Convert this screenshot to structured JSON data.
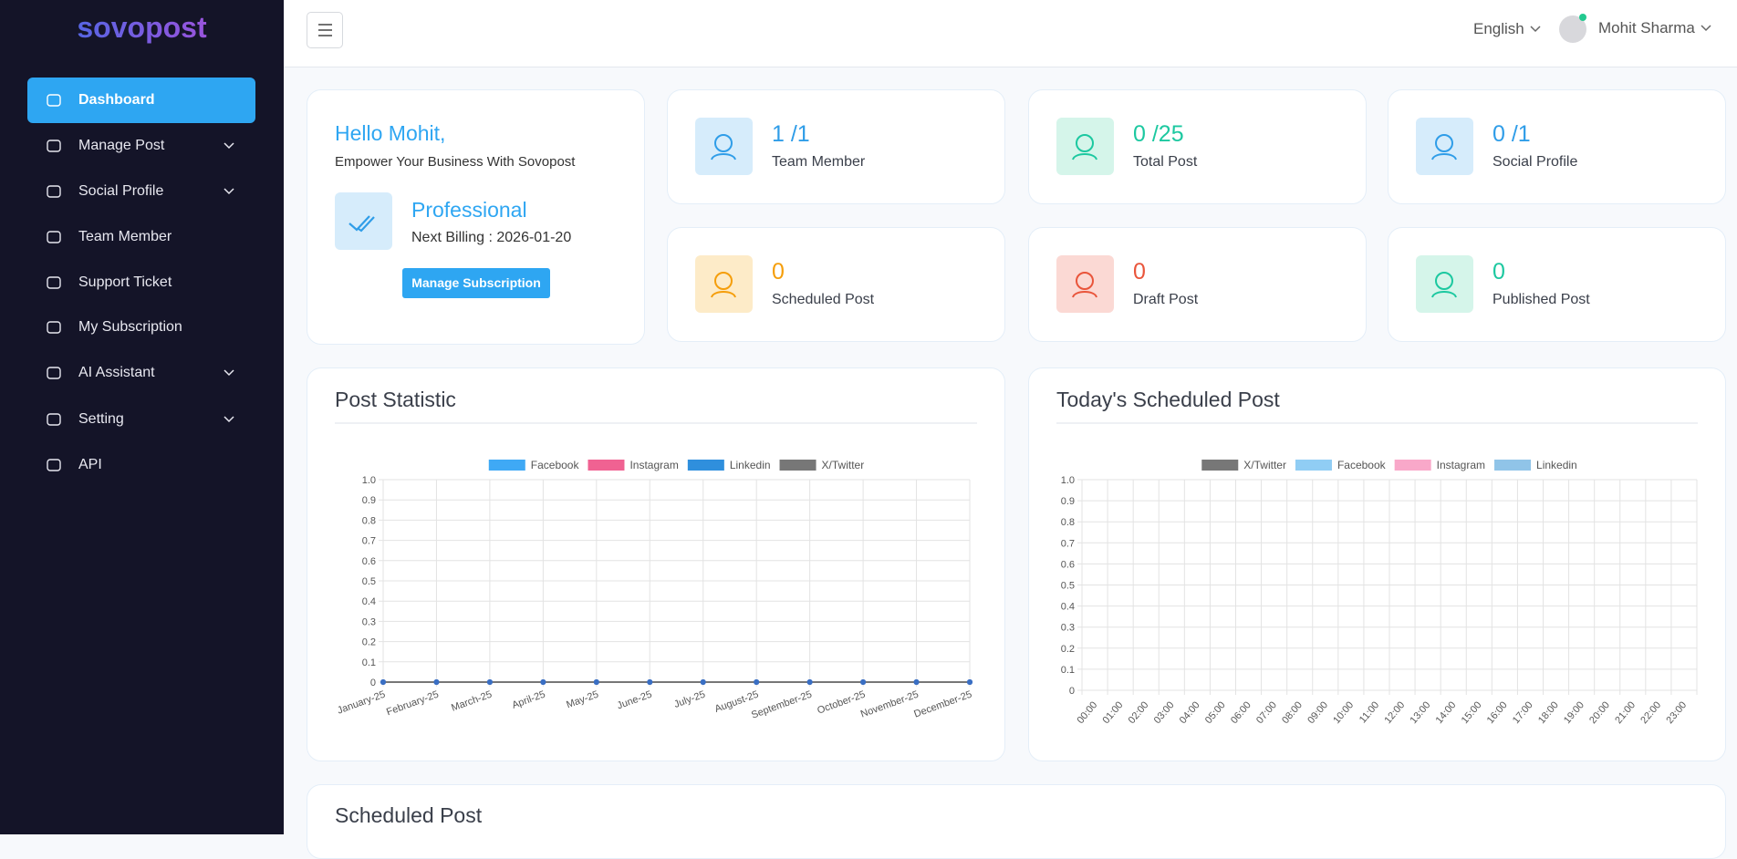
{
  "sidebar": {
    "logo": "sovopost",
    "menu": [
      "Dashboard",
      "Manage Post",
      "Social Profile",
      "Team Member",
      "Support Ticket",
      "My Subscription",
      "AI Assistant",
      "Setting",
      "API"
    ]
  },
  "header": {
    "language": "English",
    "user": "Mohit Sharma"
  },
  "welcome": {
    "greeting": "Hello Mohit,",
    "tagline": "Empower Your Business With Sovopost",
    "plan": "Professional",
    "billing": "Next Billing : 2026-01-20",
    "button": "Manage Subscription"
  },
  "stats": [
    {
      "value": "1 /1",
      "label": "Team Member"
    },
    {
      "value": "0 /25",
      "label": "Total Post"
    },
    {
      "value": "0 /1",
      "label": "Social Profile"
    },
    {
      "value": 0,
      "label": "Scheduled Post"
    },
    {
      "value": 0,
      "label": "Draft Post"
    },
    {
      "value": 0,
      "label": "Published Post"
    }
  ],
  "chart_data": [
    {
      "type": "line",
      "title": "Post Statistic",
      "categories": [
        "January-25",
        "February-25",
        "March-25",
        "April-25",
        "May-25",
        "June-25",
        "July-25",
        "August-25",
        "September-25",
        "October-25",
        "November-25",
        "December-25"
      ],
      "series": [
        {
          "name": "Facebook",
          "color": "#3fa9f5",
          "values": [
            0,
            0,
            0,
            0,
            0,
            0,
            0,
            0,
            0,
            0,
            0,
            0
          ]
        },
        {
          "name": "Instagram",
          "color": "#f06292",
          "values": [
            0,
            0,
            0,
            0,
            0,
            0,
            0,
            0,
            0,
            0,
            0,
            0
          ]
        },
        {
          "name": "Linkedin",
          "color": "#2f8fdd",
          "values": [
            0,
            0,
            0,
            0,
            0,
            0,
            0,
            0,
            0,
            0,
            0,
            0
          ]
        },
        {
          "name": "X/Twitter",
          "color": "#777777",
          "values": [
            0,
            0,
            0,
            0,
            0,
            0,
            0,
            0,
            0,
            0,
            0,
            0
          ]
        }
      ],
      "ylim": [
        0,
        1
      ],
      "yticks": [
        0,
        0.1,
        0.2,
        0.3,
        0.4,
        0.5,
        0.6,
        0.7,
        0.8,
        0.9,
        {
          "value": 1,
          "label": "1.0"
        }
      ],
      "grid": true
    },
    {
      "type": "bar",
      "title": "Today's Scheduled Post",
      "categories": [
        "00:00",
        "01:00",
        "02:00",
        "03:00",
        "04:00",
        "05:00",
        "06:00",
        "07:00",
        "08:00",
        "09:00",
        "10:00",
        "11:00",
        "12:00",
        "13:00",
        "14:00",
        "15:00",
        "16:00",
        "17:00",
        "18:00",
        "19:00",
        "20:00",
        "21:00",
        "22:00",
        "23:00"
      ],
      "series": [
        {
          "name": "X/Twitter",
          "color": "#777777",
          "values": [
            0,
            0,
            0,
            0,
            0,
            0,
            0,
            0,
            0,
            0,
            0,
            0,
            0,
            0,
            0,
            0,
            0,
            0,
            0,
            0,
            0,
            0,
            0,
            0
          ]
        },
        {
          "name": "Facebook",
          "color": "#90cdf4",
          "values": [
            0,
            0,
            0,
            0,
            0,
            0,
            0,
            0,
            0,
            0,
            0,
            0,
            0,
            0,
            0,
            0,
            0,
            0,
            0,
            0,
            0,
            0,
            0,
            0
          ]
        },
        {
          "name": "Instagram",
          "color": "#f9a8c9",
          "values": [
            0,
            0,
            0,
            0,
            0,
            0,
            0,
            0,
            0,
            0,
            0,
            0,
            0,
            0,
            0,
            0,
            0,
            0,
            0,
            0,
            0,
            0,
            0,
            0
          ]
        },
        {
          "name": "Linkedin",
          "color": "#90c4e8",
          "values": [
            0,
            0,
            0,
            0,
            0,
            0,
            0,
            0,
            0,
            0,
            0,
            0,
            0,
            0,
            0,
            0,
            0,
            0,
            0,
            0,
            0,
            0,
            0,
            0
          ]
        }
      ],
      "ylim": [
        0,
        1
      ],
      "yticks": [
        0,
        0.1,
        0.2,
        0.3,
        0.4,
        0.5,
        0.6,
        0.7,
        0.8,
        0.9,
        {
          "value": 1,
          "label": "1.0"
        }
      ],
      "grid": true
    }
  ],
  "scheduled_section": {
    "title": "Scheduled Post"
  }
}
